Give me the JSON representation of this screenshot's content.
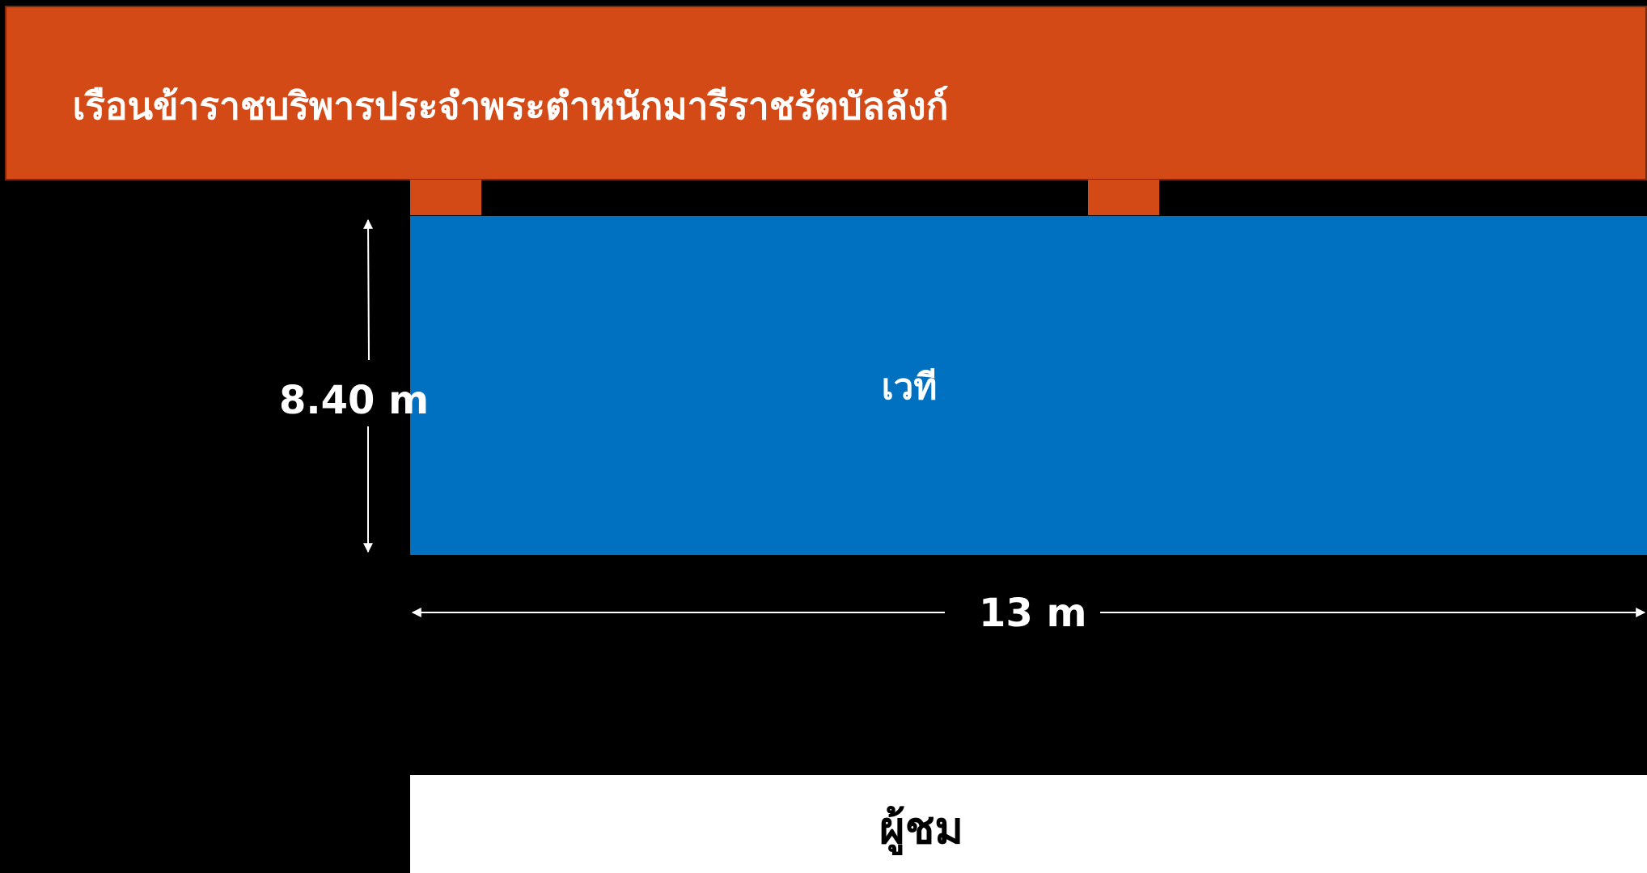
{
  "building": {
    "title": "เรือนข้าราชบริพารประจำพระตำหนักมารีราชรัตบัลลังก์",
    "color": "#d34a17"
  },
  "stage": {
    "label": "เวที",
    "color": "#0070c0"
  },
  "audience": {
    "label": "ผู้ชม",
    "color": "#ffffff"
  },
  "dimensions": {
    "height_label": "8.40 m",
    "width_label": "13 m",
    "color": "#ffffff"
  }
}
